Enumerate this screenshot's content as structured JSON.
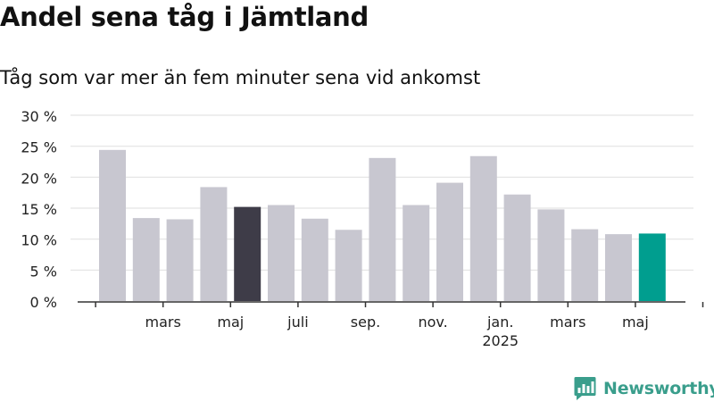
{
  "title": "Andel sena tåg i Jämtland",
  "subtitle": "Tåg som var mer än fem minuter sena vid ankomst",
  "brand": {
    "name": "Newsworthy",
    "icon": "newsworthy-logo-icon",
    "color": "#3a9e8c"
  },
  "colors": {
    "bar_default": "#c8c7d0",
    "bar_highlight_dark": "#3e3c48",
    "bar_highlight_accent": "#009e8f",
    "gridline": "#e3e3e3",
    "axis": "#333333"
  },
  "chart_data": {
    "type": "bar",
    "title": "Andel sena tåg i Jämtland",
    "subtitle": "Tåg som var mer än fem minuter sena vid ankomst",
    "ylim": [
      0,
      30
    ],
    "yticks": [
      0,
      5,
      10,
      15,
      20,
      25,
      30
    ],
    "ytick_labels": [
      "0 %",
      "5 %",
      "10 %",
      "15 %",
      "20 %",
      "25 %",
      "30 %"
    ],
    "grid": true,
    "xtick_labels": [
      {
        "label": "mars",
        "sublabel": "",
        "position": 1.5
      },
      {
        "label": "maj",
        "sublabel": "",
        "position": 3.5
      },
      {
        "label": "juli",
        "sublabel": "",
        "position": 5.5
      },
      {
        "label": "sep.",
        "sublabel": "",
        "position": 7.5
      },
      {
        "label": "nov.",
        "sublabel": "",
        "position": 9.5
      },
      {
        "label": "jan.",
        "sublabel": "2025",
        "position": 11.5
      },
      {
        "label": "mars",
        "sublabel": "",
        "position": 13.5
      },
      {
        "label": "maj",
        "sublabel": "",
        "position": 15.5
      }
    ],
    "values": [
      24.4,
      13.4,
      13.2,
      18.4,
      15.2,
      15.5,
      13.3,
      11.5,
      23.1,
      15.5,
      19.1,
      23.4,
      17.2,
      14.8,
      11.6,
      10.8,
      10.9
    ],
    "highlight": {
      "4": "dark",
      "16": "accent"
    }
  }
}
